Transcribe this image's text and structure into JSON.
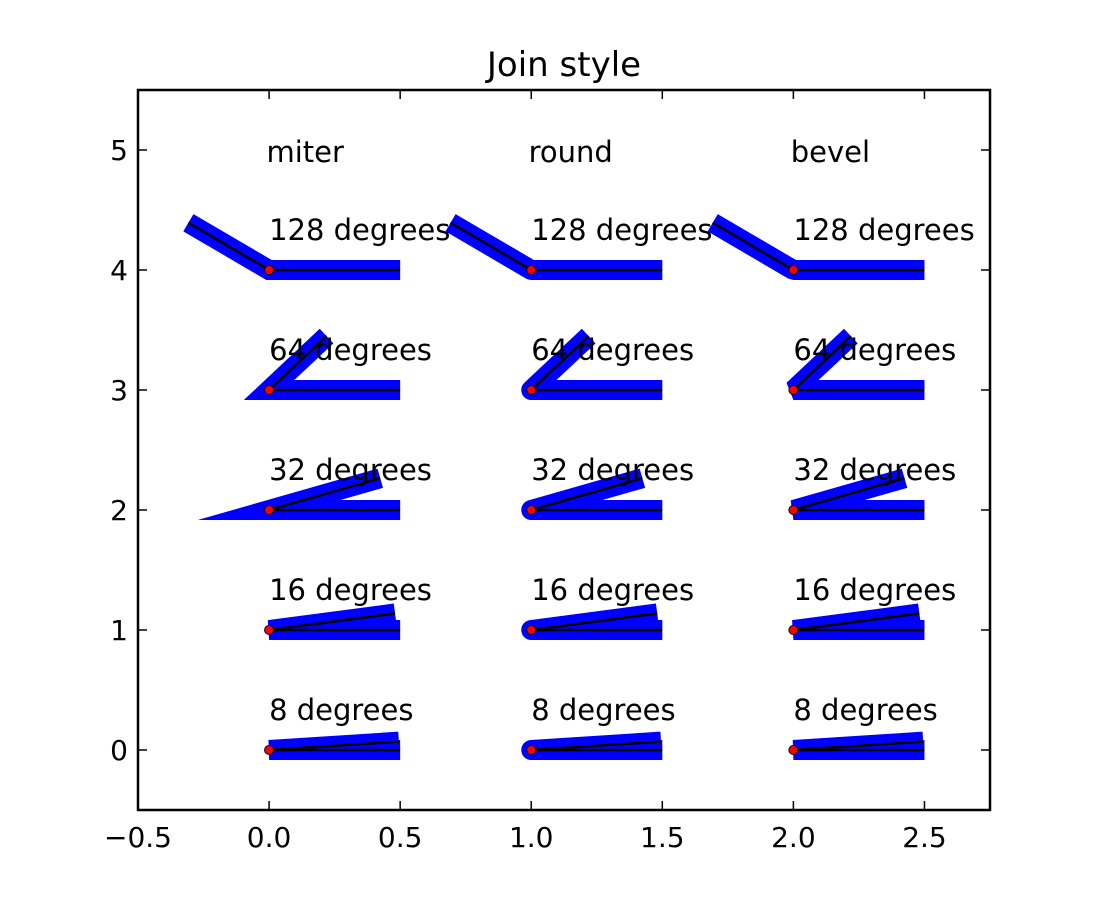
{
  "chart_data": {
    "type": "line",
    "title": "Join style",
    "xlabel": "",
    "ylabel": "",
    "xlim": [
      -0.5,
      2.75
    ],
    "ylim": [
      -0.5,
      5.5
    ],
    "grid": false,
    "x_ticks": [
      -0.5,
      0.0,
      0.5,
      1.0,
      1.5,
      2.0,
      2.5
    ],
    "x_tick_labels": [
      "−0.5",
      "0.0",
      "0.5",
      "1.0",
      "1.5",
      "2.0",
      "2.5"
    ],
    "y_ticks": [
      0,
      1,
      2,
      3,
      4,
      5
    ],
    "y_tick_labels": [
      "0",
      "1",
      "2",
      "3",
      "4",
      "5"
    ],
    "join_styles": [
      {
        "name": "miter",
        "x": 0.0,
        "label": "miter"
      },
      {
        "name": "round",
        "x": 1.0,
        "label": "round"
      },
      {
        "name": "bevel",
        "x": 2.0,
        "label": "bevel"
      }
    ],
    "angles": [
      {
        "y": 4,
        "degrees": 128,
        "label": "128 degrees"
      },
      {
        "y": 3,
        "degrees": 64,
        "label": "64 degrees"
      },
      {
        "y": 2,
        "degrees": 32,
        "label": "32 degrees"
      },
      {
        "y": 1,
        "degrees": 16,
        "label": "16 degrees"
      },
      {
        "y": 0,
        "degrees": 8,
        "label": "8 degrees"
      }
    ],
    "segment_length": 0.5,
    "colors": {
      "thick_line": "#0000ff",
      "thin_line": "#000000",
      "vertex_marker": "#ff0000"
    }
  }
}
